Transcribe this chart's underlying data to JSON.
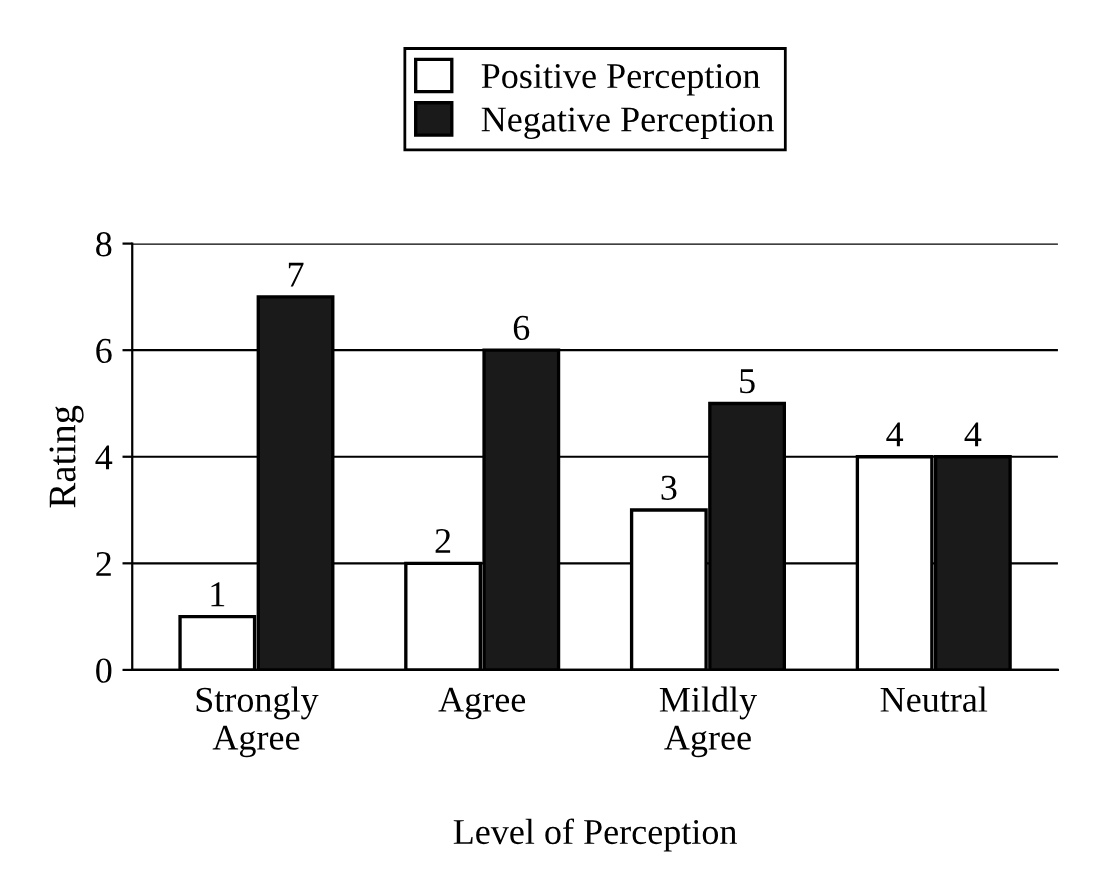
{
  "chart_data": {
    "type": "bar",
    "xlabel": "Level of Perception",
    "ylabel": "Rating",
    "categories": [
      "Strongly\nAgree",
      "Agree",
      "Mildly\nAgree",
      "Neutral"
    ],
    "series": [
      {
        "name": "Positive Perception",
        "color": "#ffffff",
        "values": [
          1,
          2,
          3,
          4
        ]
      },
      {
        "name": "Negative Perception",
        "color": "#1a1a1a",
        "values": [
          7,
          6,
          5,
          4
        ]
      }
    ],
    "ylim": [
      0,
      8
    ],
    "yticks": [
      0,
      2,
      4,
      6,
      8
    ],
    "grid": "y",
    "legend": "top",
    "data_labels": true
  }
}
